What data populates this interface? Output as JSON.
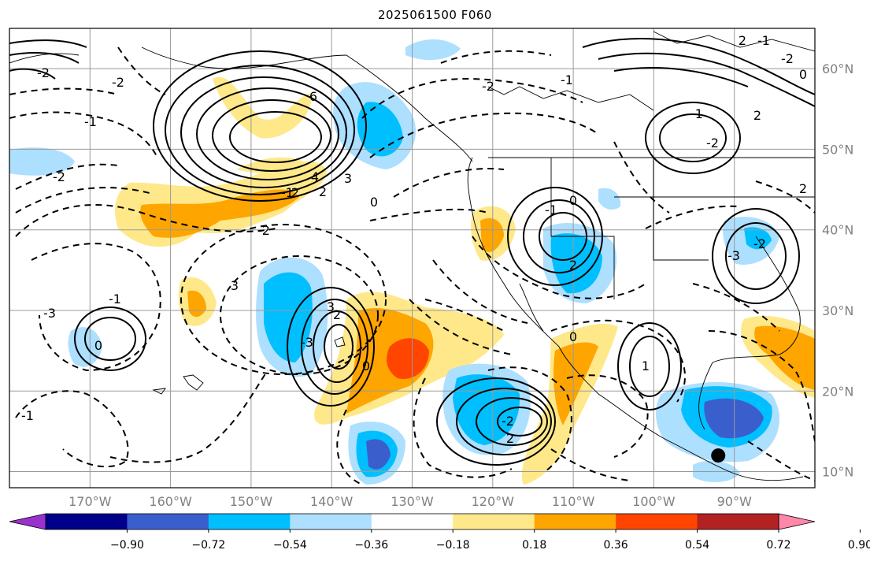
{
  "title": "2025061500 F060",
  "map": {
    "lon_range": [
      -180,
      -80
    ],
    "lat_range": [
      8,
      65
    ],
    "lon_ticks": [
      {
        "lon": -170,
        "label": "170°W"
      },
      {
        "lon": -160,
        "label": "160°W"
      },
      {
        "lon": -150,
        "label": "150°W"
      },
      {
        "lon": -140,
        "label": "140°W"
      },
      {
        "lon": -130,
        "label": "130°W"
      },
      {
        "lon": -120,
        "label": "120°W"
      },
      {
        "lon": -110,
        "label": "110°W"
      },
      {
        "lon": -100,
        "label": "100°W"
      },
      {
        "lon": -90,
        "label": "90°W"
      }
    ],
    "lat_ticks": [
      {
        "lat": 60,
        "label": "60°N"
      },
      {
        "lat": 50,
        "label": "50°N"
      },
      {
        "lat": 40,
        "label": "40°N"
      },
      {
        "lat": 30,
        "label": "30°N"
      },
      {
        "lat": 20,
        "label": "20°N"
      },
      {
        "lat": 10,
        "label": "10°N"
      }
    ],
    "gridlines": true,
    "marker": {
      "lon": -92,
      "lat": 12,
      "color": "#000000"
    },
    "contour_labels": [
      "-2",
      "-2",
      "-1",
      "-2",
      "6",
      "4",
      "3",
      "2",
      "2",
      "-1",
      "-2",
      "0",
      "-2",
      "3",
      "2",
      "-3",
      "0",
      "3",
      "-1",
      "0",
      "2",
      "2",
      "-2",
      "0",
      "1",
      "-1",
      "-2",
      "-1",
      "2",
      "2",
      "-3",
      "-2",
      "-2",
      "2",
      "-1",
      "0",
      "-1",
      "-3",
      "0",
      "-1"
    ]
  },
  "colorbar": {
    "ticks": [
      "−0.90",
      "−0.72",
      "−0.54",
      "−0.36",
      "−0.18",
      "0.18",
      "0.36",
      "0.54",
      "0.72",
      "0.90"
    ],
    "colors": [
      "#9932CC",
      "#00008B",
      "#3A5FCD",
      "#00BFFF",
      "#ADDFFF",
      "#FFFFFF",
      "#FFE88A",
      "#FFA500",
      "#FF4500",
      "#B22222",
      "#FF88AA"
    ],
    "extend": "both"
  }
}
